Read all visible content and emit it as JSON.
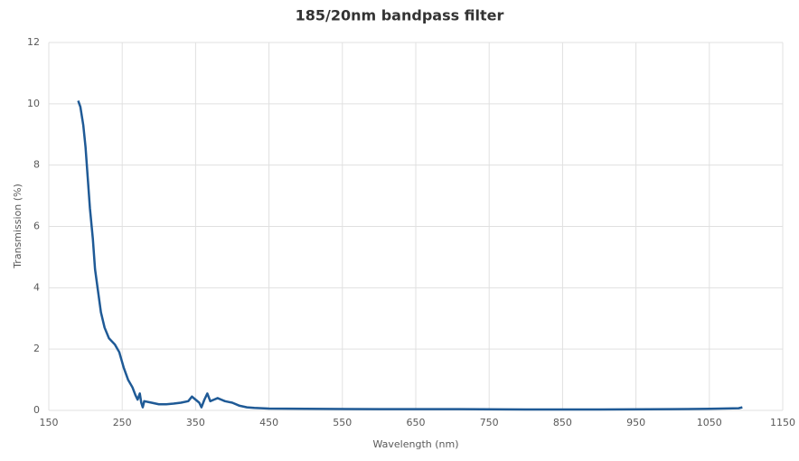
{
  "chart_data": {
    "type": "line",
    "title": "185/20nm bandpass filter",
    "x_label": "Wavelength (nm)",
    "y_label": "Transmission (%)",
    "xlim": [
      150,
      1150
    ],
    "xticks": [
      150,
      250,
      350,
      450,
      550,
      650,
      750,
      850,
      950,
      1050,
      1150
    ],
    "ylim": [
      0,
      12
    ],
    "yticks": [
      0,
      2,
      4,
      6,
      8,
      10,
      12
    ],
    "grid": true,
    "series": [
      {
        "name": "Transmission",
        "color": "#1f5a96",
        "x": [
          190,
          193,
          197,
          200,
          203,
          206,
          210,
          213,
          217,
          221,
          226,
          232,
          240,
          246,
          252,
          258,
          264,
          268,
          271,
          274,
          276,
          278,
          280,
          290,
          300,
          310,
          320,
          330,
          340,
          345,
          350,
          355,
          358,
          362,
          366,
          370,
          375,
          380,
          385,
          390,
          400,
          410,
          420,
          430,
          450,
          500,
          600,
          700,
          800,
          900,
          1000,
          1050,
          1090,
          1095
        ],
        "values": [
          10.1,
          9.9,
          9.3,
          8.6,
          7.6,
          6.6,
          5.6,
          4.6,
          3.9,
          3.2,
          2.7,
          2.35,
          2.15,
          1.9,
          1.4,
          1.0,
          0.75,
          0.5,
          0.35,
          0.55,
          0.25,
          0.1,
          0.3,
          0.25,
          0.2,
          0.2,
          0.22,
          0.25,
          0.3,
          0.45,
          0.35,
          0.25,
          0.1,
          0.35,
          0.55,
          0.3,
          0.35,
          0.4,
          0.35,
          0.3,
          0.25,
          0.15,
          0.1,
          0.08,
          0.06,
          0.05,
          0.04,
          0.04,
          0.03,
          0.03,
          0.04,
          0.05,
          0.07,
          0.1
        ]
      }
    ]
  }
}
